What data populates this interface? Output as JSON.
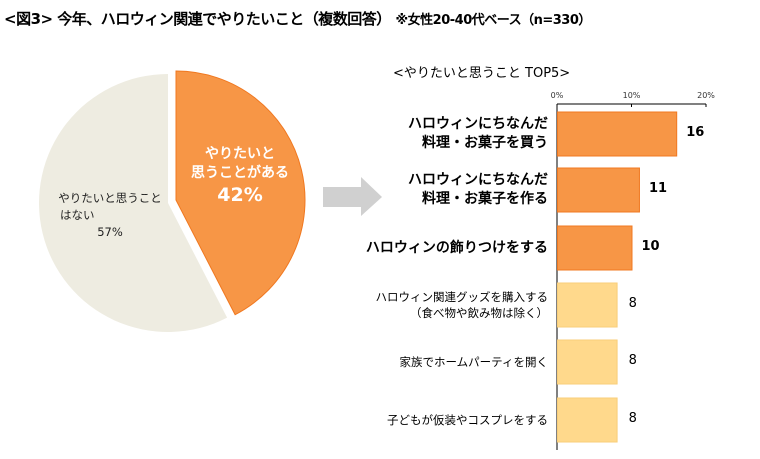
{
  "title": "<図3> 今年、ハロウィン関連でやりたいこと（複数回答）",
  "title_note": "※女性20-40代ベース（n=330）",
  "chart_data": [
    {
      "type": "pie",
      "slices": [
        {
          "label_line1": "やりたいと",
          "label_line2": "思うことがある",
          "value": 42,
          "value_label": "42%",
          "color": "#F79646",
          "exploded": true
        },
        {
          "label_line1": "やりたいと思うこと",
          "label_line2": "はない",
          "value": 57,
          "value_label": "57%",
          "color": "#EEECE1"
        }
      ]
    },
    {
      "type": "bar",
      "orientation": "horizontal",
      "title": "<やりたいと思うこと TOP5>",
      "xlim": [
        0,
        20
      ],
      "ticks": [
        "0%",
        "10%",
        "20%"
      ],
      "tick_values": [
        0,
        10,
        20
      ],
      "categories": [
        [
          "ハロウィンにちなんだ",
          "料理・お菓子を買う"
        ],
        [
          "ハロウィンにちなんだ",
          "料理・お菓子を作る"
        ],
        [
          "ハロウィンの飾りつけをする"
        ],
        [
          "ハロウィン関連グッズを購入する",
          "（食べ物や飲み物は除く）"
        ],
        [
          "家族でホームパーティを開く"
        ],
        [
          "子どもが仮装やコスプレをする"
        ]
      ],
      "values": [
        16,
        11,
        10,
        8,
        8,
        8
      ],
      "bar_colors": [
        "#F79646",
        "#F79646",
        "#F79646",
        "#FFD98C",
        "#FFD98C",
        "#FFD98C"
      ],
      "emphasized": [
        true,
        true,
        true,
        false,
        false,
        false
      ]
    }
  ],
  "arrow_color": "#D0D0D0"
}
